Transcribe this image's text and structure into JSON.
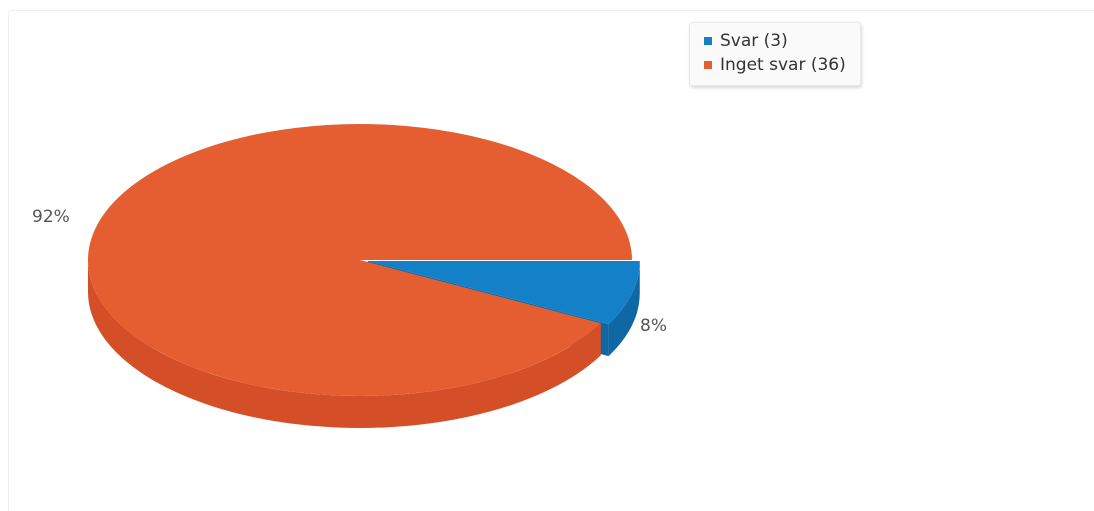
{
  "chart_data": {
    "type": "pie",
    "title": "",
    "slices": [
      {
        "label": "Svar (3)",
        "value": 3,
        "percent_label": "8%",
        "color": "#1380c8",
        "side_color": "#0f67a3"
      },
      {
        "label": "Inget svar (36)",
        "value": 36,
        "percent_label": "92%",
        "color": "#e45e32",
        "side_color": "#d44f27"
      }
    ],
    "legend_position": "top-right",
    "style": "3d"
  }
}
